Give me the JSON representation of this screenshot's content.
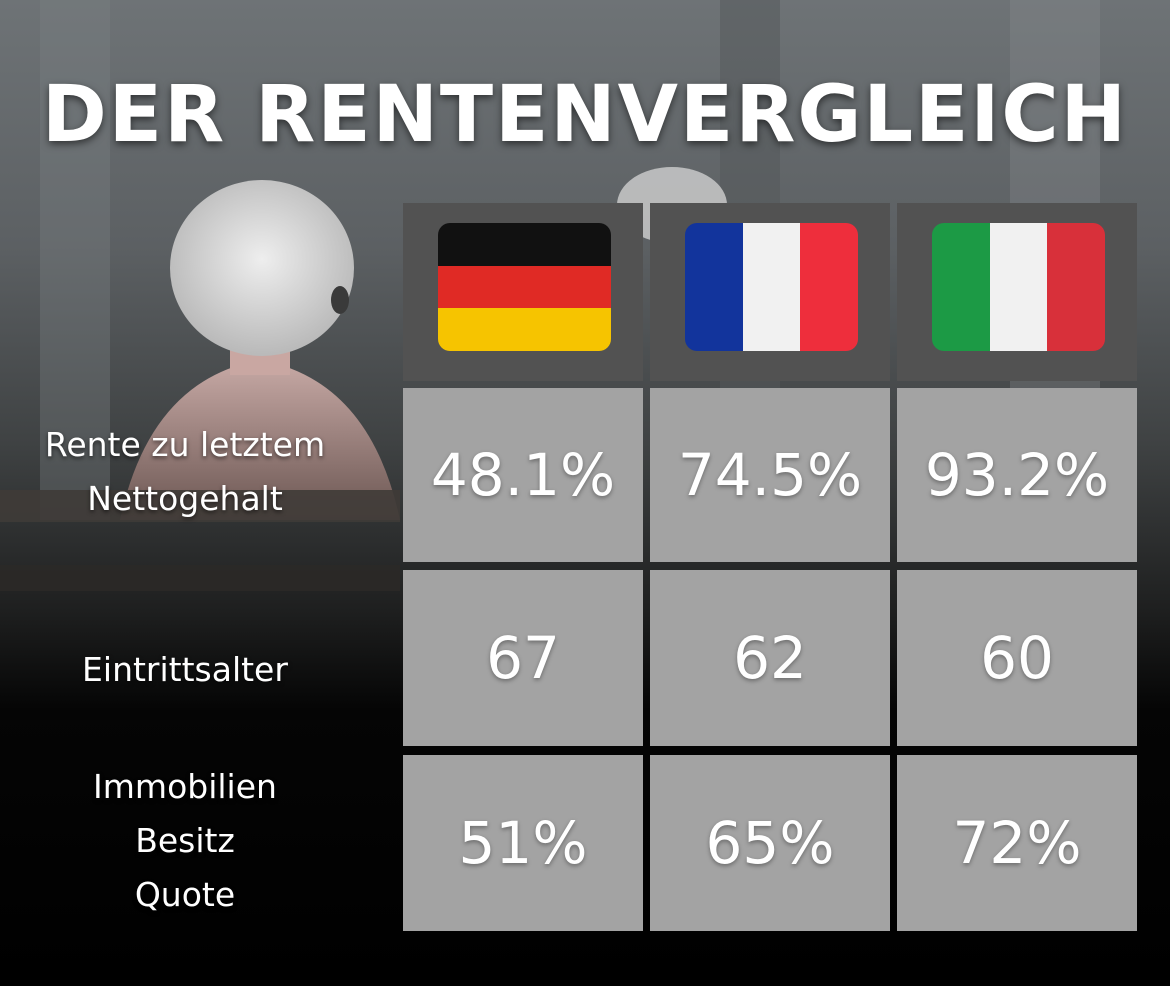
{
  "title": "DER RENTENVERGLEICH",
  "countries": [
    {
      "flag": "germany-flag",
      "colors": [
        "#111111",
        "#e02a25",
        "#f6c400"
      ]
    },
    {
      "flag": "france-flag",
      "colors": [
        "#12349c",
        "#f1f1f1",
        "#ee2e3c"
      ]
    },
    {
      "flag": "italy-flag",
      "colors": [
        "#1c9a45",
        "#f1f1f1",
        "#d8303a"
      ]
    }
  ],
  "rows": [
    {
      "label_lines": [
        "Rente zu letztem",
        "Nettogehalt"
      ],
      "values": [
        "48.1%",
        "74.5%",
        "93.2%"
      ]
    },
    {
      "label_lines": [
        "Eintrittsalter"
      ],
      "values": [
        "67",
        "62",
        "60"
      ]
    },
    {
      "label_lines": [
        "Immobilien",
        "Besitz",
        "Quote"
      ],
      "values": [
        "51%",
        "65%",
        "72%"
      ]
    }
  ],
  "colors": {
    "cell_bg": "#a3a3a3",
    "flag_cell_bg": "#525252",
    "text": "#ffffff"
  }
}
